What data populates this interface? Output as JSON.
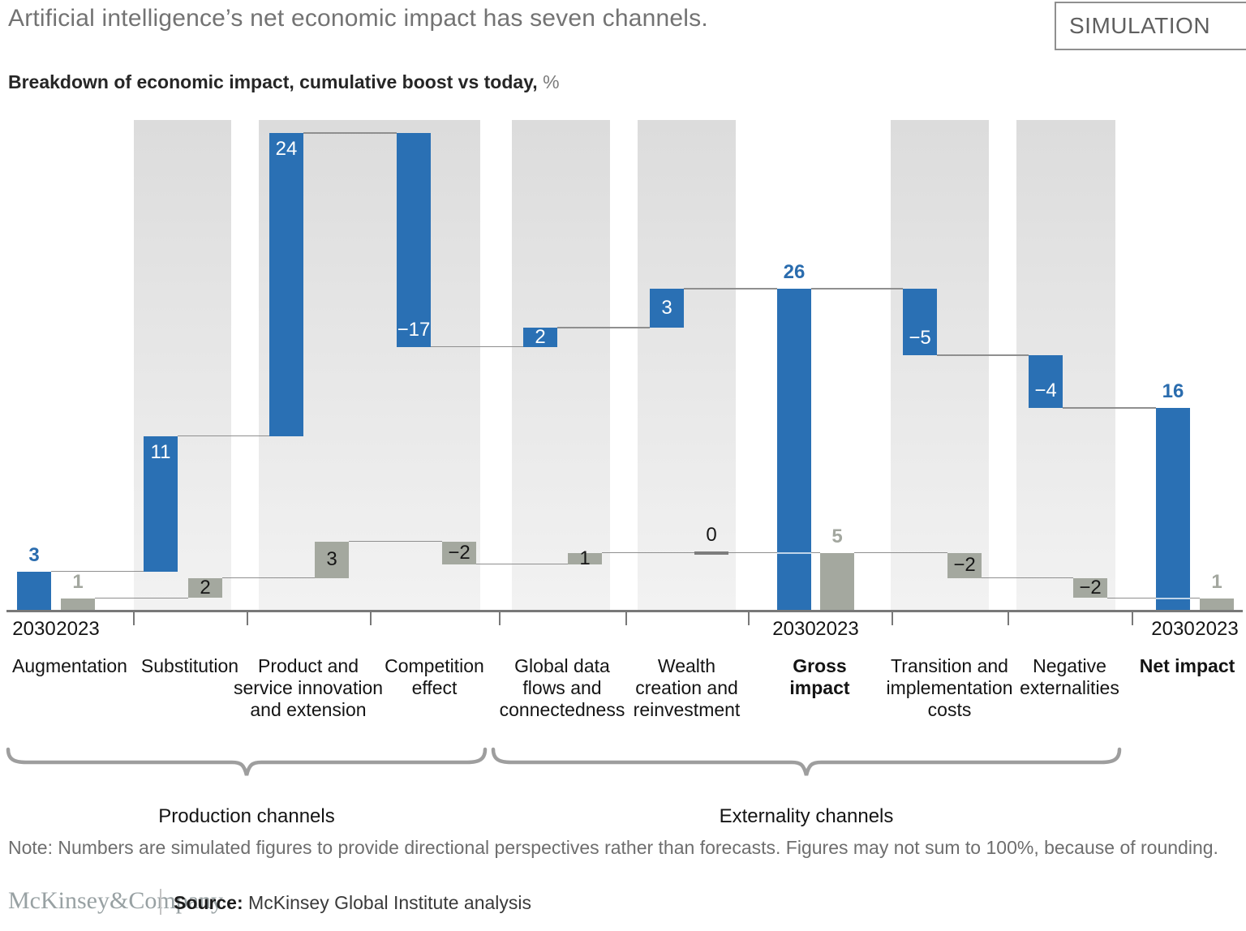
{
  "header": {
    "title": "Artificial intelligence’s net economic impact has seven channels.",
    "badge": "SIMULATION"
  },
  "subtitle": {
    "bold": "Breakdown of economic impact, cumulative boost vs today,",
    "unit": "%"
  },
  "chart_data": {
    "type": "bar",
    "subtype": "waterfall",
    "title": "Breakdown of economic impact, cumulative boost vs today, %",
    "categories": [
      "Augmentation",
      "Substitution",
      "Product and service innovation and extension",
      "Competition effect",
      "Global data flows and connectedness",
      "Wealth creation and reinvestment",
      "Gross impact",
      "Transition and implementation costs",
      "Negative externalities",
      "Net impact"
    ],
    "category_display": [
      "Augmentation",
      "Substitution",
      "Product and\nservice innovation\nand extension",
      "Competition\neffect",
      "Global data\nflows and\nconnectedness",
      "Wealth\ncreation and\nreinvestment",
      "Gross\nimpact",
      "Transition and\nimplementation\ncosts",
      "Negative\nexternalities",
      "Net impact"
    ],
    "bold_categories": [
      6,
      9
    ],
    "year_labels": [
      "2030",
      "2023"
    ],
    "year_columns": [
      0,
      6,
      9
    ],
    "series": [
      {
        "name": "2030",
        "color": "#2a70b4",
        "values": [
          3,
          11,
          24,
          -17,
          2,
          3,
          26,
          -5,
          -4,
          16
        ],
        "labels": [
          "3",
          "11",
          "24",
          "−17",
          "2",
          "3",
          "26",
          "−5",
          "−4",
          "16"
        ],
        "kinds": [
          "delta",
          "delta",
          "delta",
          "delta",
          "delta",
          "delta",
          "total",
          "delta",
          "delta",
          "total"
        ],
        "levels": [
          [
            0,
            3.1
          ],
          [
            3.1,
            13.9
          ],
          [
            13.9,
            38
          ],
          [
            38,
            21
          ],
          [
            21,
            22.5
          ],
          [
            22.5,
            25.6
          ],
          [
            0,
            25.6
          ],
          [
            25.6,
            20.3
          ],
          [
            20.3,
            16.1
          ],
          [
            0,
            16.1
          ]
        ],
        "label_pos": [
          "above",
          "inside-top",
          "inside-top",
          "inside-bottom",
          "center",
          "center",
          "above",
          "inside-bottom",
          "inside-bottom",
          "above"
        ],
        "label_style": [
          "blue",
          "white",
          "white",
          "white",
          "white",
          "white",
          "blue",
          "white",
          "white",
          "blue"
        ]
      },
      {
        "name": "2023",
        "color": "#a4a89f",
        "values": [
          1,
          2,
          3,
          -2,
          1,
          0,
          5,
          -2,
          -2,
          1
        ],
        "labels": [
          "1",
          "2",
          "3",
          "−2",
          "1",
          "0",
          "5",
          "−2",
          "−2",
          "1"
        ],
        "kinds": [
          "delta",
          "delta",
          "delta",
          "delta",
          "delta",
          "zero",
          "total",
          "delta",
          "delta",
          "total"
        ],
        "levels": [
          [
            0,
            1.0
          ],
          [
            1.0,
            2.6
          ],
          [
            2.6,
            5.5
          ],
          [
            5.5,
            3.7
          ],
          [
            3.7,
            4.6
          ],
          [
            4.6,
            4.6
          ],
          [
            0,
            4.6
          ],
          [
            4.6,
            2.6
          ],
          [
            2.6,
            1.0
          ],
          [
            0,
            1.0
          ]
        ],
        "label_pos": [
          "above",
          "center",
          "center",
          "center",
          "center",
          "above",
          "above",
          "center",
          "center",
          "above"
        ],
        "label_style": [
          "gray",
          "black",
          "black",
          "black",
          "black",
          "black",
          "gray",
          "black",
          "black",
          "gray"
        ]
      }
    ],
    "groups": [
      {
        "label": "Production channels",
        "from": 0,
        "to": 3
      },
      {
        "label": "Externality channels",
        "from": 4,
        "to": 8
      }
    ],
    "legend_position": "none",
    "grid": false
  },
  "note": "Note: Numbers are simulated figures to provide directional perspectives rather than forecasts. Figures may not sum to 100%, because of rounding.",
  "footer": {
    "logo": "McKinsey&Company",
    "source_label": "Source:",
    "source_text": " McKinsey Global Institute analysis"
  }
}
